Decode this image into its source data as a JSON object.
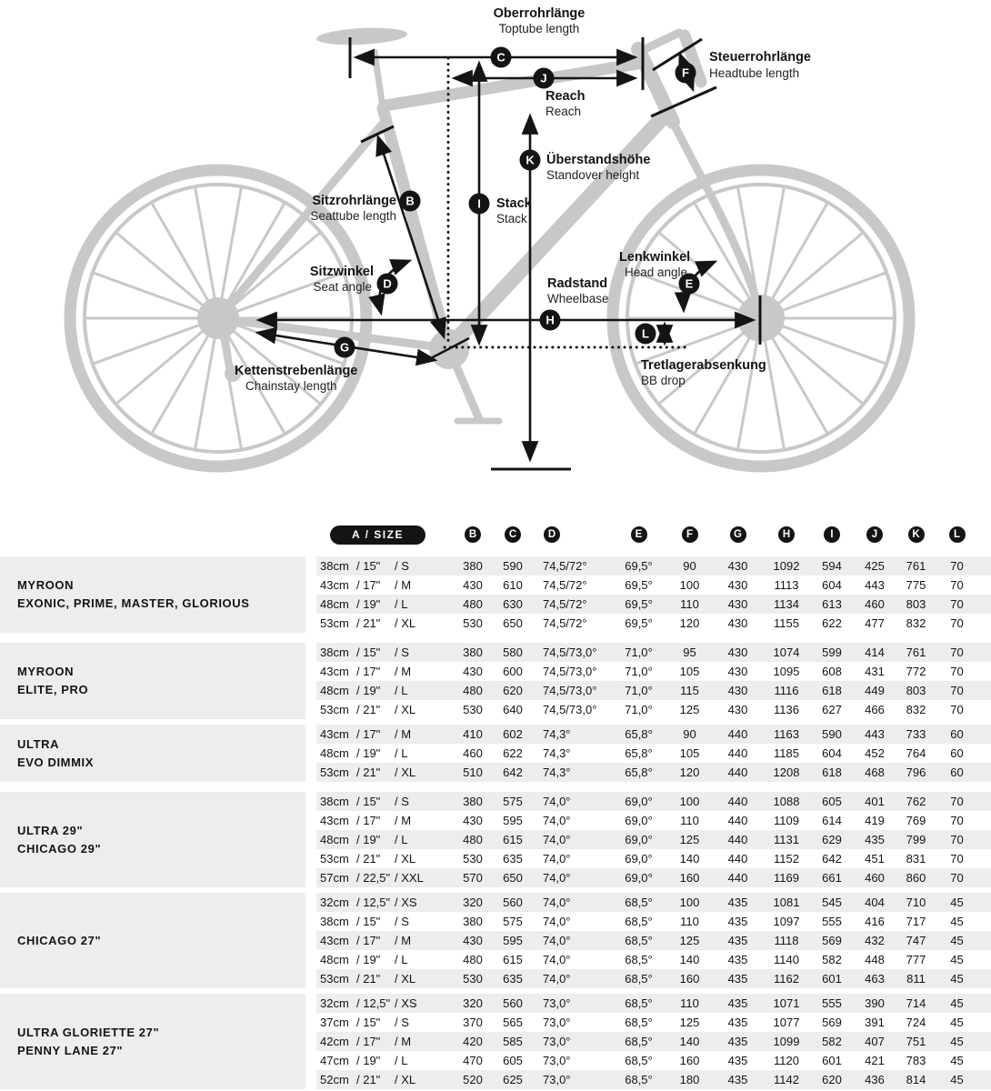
{
  "colors": {
    "accent_black": "#141414",
    "bike_silhouette": "#c8c8c8",
    "row_stripe": "#ededed"
  },
  "diagram": {
    "labels": {
      "toptube": {
        "de": "Oberrohrlänge",
        "en": "Toptube length",
        "letter": "C"
      },
      "reach": {
        "de": "Reach",
        "en": "Reach",
        "letter": "J"
      },
      "headtube": {
        "de": "Steuerrohrlänge",
        "en": "Headtube length",
        "letter": "F"
      },
      "standover": {
        "de": "Überstandshöhe",
        "en": "Standover height",
        "letter": "K"
      },
      "stack": {
        "de": "Stack",
        "en": "Stack",
        "letter": "I"
      },
      "seattube": {
        "de": "Sitzrohrlänge",
        "en": "Seattube length",
        "letter": "B"
      },
      "seatangle": {
        "de": "Sitzwinkel",
        "en": "Seat angle",
        "letter": "D"
      },
      "headangle": {
        "de": "Lenkwinkel",
        "en": "Head angle",
        "letter": "E"
      },
      "wheelbase": {
        "de": "Radstand",
        "en": "Wheelbase",
        "letter": "H"
      },
      "chainstay": {
        "de": "Kettenstrebenlänge",
        "en": "Chainstay length",
        "letter": "G"
      },
      "bbdrop": {
        "de": "Tretlagerabsenkung",
        "en": "BB drop",
        "letter": "L"
      }
    }
  },
  "table": {
    "header": {
      "size_label": "A / SIZE",
      "columns": [
        "B",
        "C",
        "D",
        "E",
        "F",
        "G",
        "H",
        "I",
        "J",
        "K",
        "L"
      ]
    },
    "groups": [
      {
        "model_lines": [
          "MYROON",
          "EXONIC, PRIME, MASTER, GLORIOUS"
        ],
        "rows": [
          {
            "size": {
              "cm": "38cm",
              "in": "/ 15\"",
              "sz": "/ S"
            },
            "values": [
              "380",
              "590",
              "74,5/72°",
              "69,5°",
              "90",
              "430",
              "1092",
              "594",
              "425",
              "761",
              "70"
            ]
          },
          {
            "size": {
              "cm": "43cm",
              "in": "/ 17\"",
              "sz": "/ M"
            },
            "values": [
              "430",
              "610",
              "74,5/72°",
              "69,5°",
              "100",
              "430",
              "1113",
              "604",
              "443",
              "775",
              "70"
            ]
          },
          {
            "size": {
              "cm": "48cm",
              "in": "/ 19\"",
              "sz": "/ L"
            },
            "values": [
              "480",
              "630",
              "74,5/72°",
              "69,5°",
              "110",
              "430",
              "1134",
              "613",
              "460",
              "803",
              "70"
            ]
          },
          {
            "size": {
              "cm": "53cm",
              "in": "/ 21\"",
              "sz": "/ XL"
            },
            "values": [
              "530",
              "650",
              "74,5/72°",
              "69,5°",
              "120",
              "430",
              "1155",
              "622",
              "477",
              "832",
              "70"
            ]
          }
        ]
      },
      {
        "model_lines": [
          "MYROON",
          "ELITE, PRO"
        ],
        "rows": [
          {
            "size": {
              "cm": "38cm",
              "in": "/ 15\"",
              "sz": "/ S"
            },
            "values": [
              "380",
              "580",
              "74,5/73,0°",
              "71,0°",
              "95",
              "430",
              "1074",
              "599",
              "414",
              "761",
              "70"
            ]
          },
          {
            "size": {
              "cm": "43cm",
              "in": "/ 17\"",
              "sz": "/ M"
            },
            "values": [
              "430",
              "600",
              "74,5/73,0°",
              "71,0°",
              "105",
              "430",
              "1095",
              "608",
              "431",
              "772",
              "70"
            ]
          },
          {
            "size": {
              "cm": "48cm",
              "in": "/ 19\"",
              "sz": "/ L"
            },
            "values": [
              "480",
              "620",
              "74,5/73,0°",
              "71,0°",
              "115",
              "430",
              "1116",
              "618",
              "449",
              "803",
              "70"
            ]
          },
          {
            "size": {
              "cm": "53cm",
              "in": "/ 21\"",
              "sz": "/ XL"
            },
            "values": [
              "530",
              "640",
              "74,5/73,0°",
              "71,0°",
              "125",
              "430",
              "1136",
              "627",
              "466",
              "832",
              "70"
            ]
          }
        ]
      },
      {
        "model_lines": [
          "ULTRA",
          "EVO DIMMIX"
        ],
        "rows": [
          {
            "size": {
              "cm": "43cm",
              "in": "/ 17\"",
              "sz": "/ M"
            },
            "values": [
              "410",
              "602",
              "74,3°",
              "65,8°",
              "90",
              "440",
              "1163",
              "590",
              "443",
              "733",
              "60"
            ]
          },
          {
            "size": {
              "cm": "48cm",
              "in": "/ 19\"",
              "sz": "/ L"
            },
            "values": [
              "460",
              "622",
              "74,3°",
              "65,8°",
              "105",
              "440",
              "1185",
              "604",
              "452",
              "764",
              "60"
            ]
          },
          {
            "size": {
              "cm": "53cm",
              "in": "/ 21\"",
              "sz": "/ XL"
            },
            "values": [
              "510",
              "642",
              "74,3°",
              "65,8°",
              "120",
              "440",
              "1208",
              "618",
              "468",
              "796",
              "60"
            ]
          }
        ]
      },
      {
        "model_lines": [
          "ULTRA 29\"",
          "CHICAGO 29\""
        ],
        "rows": [
          {
            "size": {
              "cm": "38cm",
              "in": "/ 15\"",
              "sz": "/ S"
            },
            "values": [
              "380",
              "575",
              "74,0°",
              "69,0°",
              "100",
              "440",
              "1088",
              "605",
              "401",
              "762",
              "70"
            ]
          },
          {
            "size": {
              "cm": "43cm",
              "in": "/ 17\"",
              "sz": "/ M"
            },
            "values": [
              "430",
              "595",
              "74,0°",
              "69,0°",
              "110",
              "440",
              "1109",
              "614",
              "419",
              "769",
              "70"
            ]
          },
          {
            "size": {
              "cm": "48cm",
              "in": "/ 19\"",
              "sz": "/ L"
            },
            "values": [
              "480",
              "615",
              "74,0°",
              "69,0°",
              "125",
              "440",
              "1131",
              "629",
              "435",
              "799",
              "70"
            ]
          },
          {
            "size": {
              "cm": "53cm",
              "in": "/ 21\"",
              "sz": "/ XL"
            },
            "values": [
              "530",
              "635",
              "74,0°",
              "69,0°",
              "140",
              "440",
              "1152",
              "642",
              "451",
              "831",
              "70"
            ]
          },
          {
            "size": {
              "cm": "57cm",
              "in": "/ 22,5\"",
              "sz": "/ XXL"
            },
            "values": [
              "570",
              "650",
              "74,0°",
              "69,0°",
              "160",
              "440",
              "1169",
              "661",
              "460",
              "860",
              "70"
            ]
          }
        ]
      },
      {
        "model_lines": [
          "CHICAGO 27\""
        ],
        "rows": [
          {
            "size": {
              "cm": "32cm",
              "in": "/ 12,5\"",
              "sz": "/ XS"
            },
            "values": [
              "320",
              "560",
              "74,0°",
              "68,5°",
              "100",
              "435",
              "1081",
              "545",
              "404",
              "710",
              "45"
            ]
          },
          {
            "size": {
              "cm": "38cm",
              "in": "/ 15\"",
              "sz": "/ S"
            },
            "values": [
              "380",
              "575",
              "74,0°",
              "68,5°",
              "110",
              "435",
              "1097",
              "555",
              "416",
              "717",
              "45"
            ]
          },
          {
            "size": {
              "cm": "43cm",
              "in": "/ 17\"",
              "sz": "/ M"
            },
            "values": [
              "430",
              "595",
              "74,0°",
              "68,5°",
              "125",
              "435",
              "1118",
              "569",
              "432",
              "747",
              "45"
            ]
          },
          {
            "size": {
              "cm": "48cm",
              "in": "/ 19\"",
              "sz": "/ L"
            },
            "values": [
              "480",
              "615",
              "74,0°",
              "68,5°",
              "140",
              "435",
              "1140",
              "582",
              "448",
              "777",
              "45"
            ]
          },
          {
            "size": {
              "cm": "53cm",
              "in": "/ 21\"",
              "sz": "/ XL"
            },
            "values": [
              "530",
              "635",
              "74,0°",
              "68,5°",
              "160",
              "435",
              "1162",
              "601",
              "463",
              "811",
              "45"
            ]
          }
        ]
      },
      {
        "model_lines": [
          "ULTRA GLORIETTE 27\"",
          "PENNY LANE 27\""
        ],
        "rows": [
          {
            "size": {
              "cm": "32cm",
              "in": "/ 12,5\"",
              "sz": "/ XS"
            },
            "values": [
              "320",
              "560",
              "73,0°",
              "68,5°",
              "110",
              "435",
              "1071",
              "555",
              "390",
              "714",
              "45"
            ]
          },
          {
            "size": {
              "cm": "37cm",
              "in": "/ 15\"",
              "sz": "/ S"
            },
            "values": [
              "370",
              "565",
              "73,0°",
              "68,5°",
              "125",
              "435",
              "1077",
              "569",
              "391",
              "724",
              "45"
            ]
          },
          {
            "size": {
              "cm": "42cm",
              "in": "/ 17\"",
              "sz": "/ M"
            },
            "values": [
              "420",
              "585",
              "73,0°",
              "68,5°",
              "140",
              "435",
              "1099",
              "582",
              "407",
              "751",
              "45"
            ]
          },
          {
            "size": {
              "cm": "47cm",
              "in": "/ 19\"",
              "sz": "/ L"
            },
            "values": [
              "470",
              "605",
              "73,0°",
              "68,5°",
              "160",
              "435",
              "1120",
              "601",
              "421",
              "783",
              "45"
            ]
          },
          {
            "size": {
              "cm": "52cm",
              "in": "/ 21\"",
              "sz": "/ XL"
            },
            "values": [
              "520",
              "625",
              "73,0°",
              "68,5°",
              "180",
              "435",
              "1142",
              "620",
              "436",
              "814",
              "45"
            ]
          }
        ]
      }
    ]
  }
}
